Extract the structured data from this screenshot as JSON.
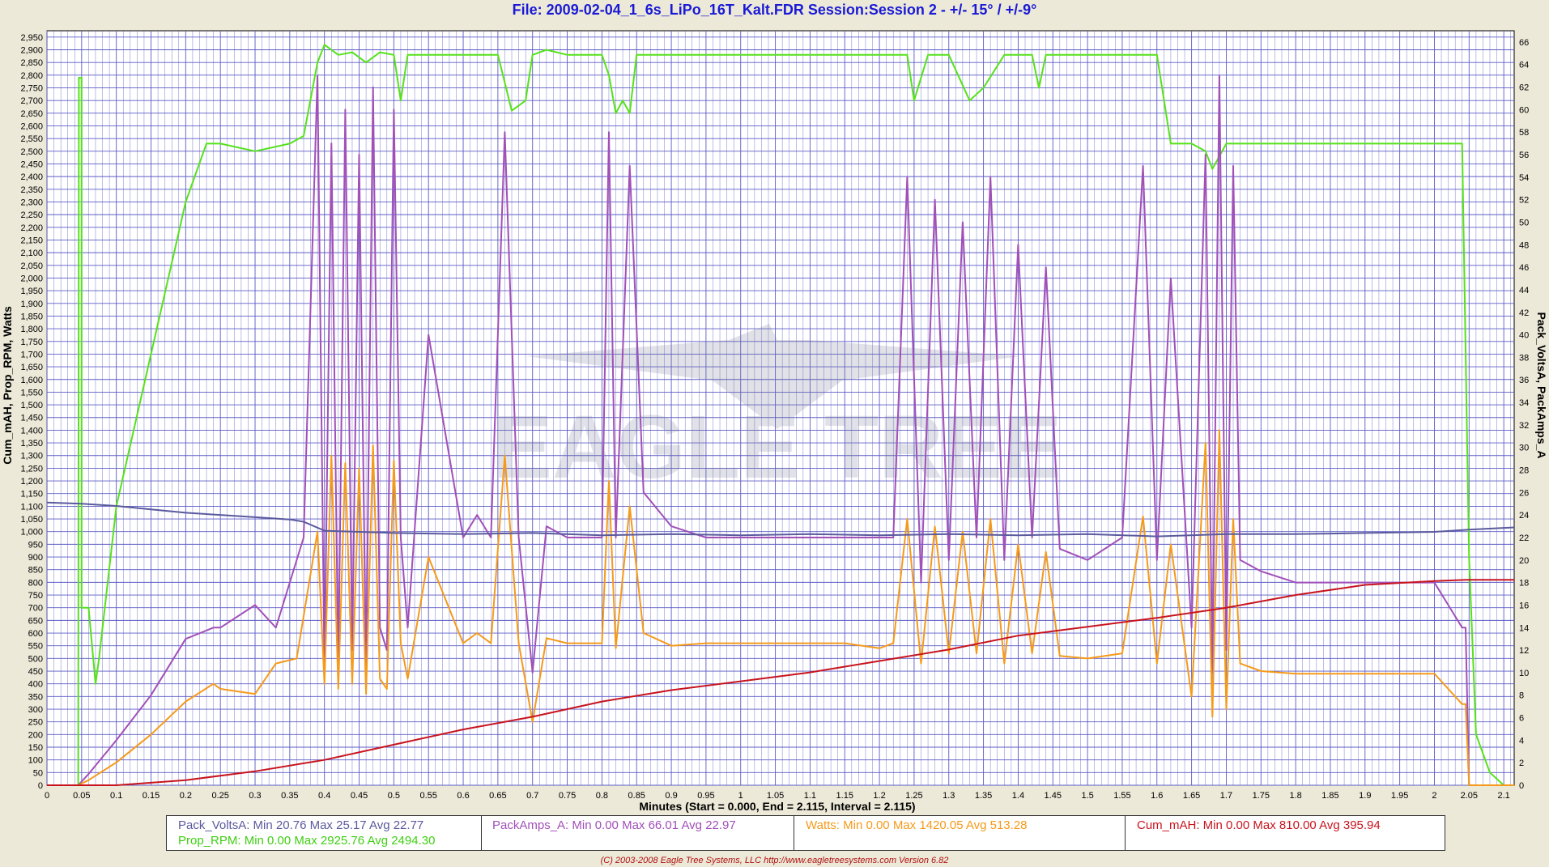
{
  "window": {
    "title": "File: 2009-02-04_1_6s_LiPo_16T_Kalt.FDR   Session:Session 2 - +/- 15° / +/-9°"
  },
  "axes": {
    "left_label": "Cum_mAH, Prop_RPM, Watts",
    "right_label": "Pack_VoltsA, PackAmps_A",
    "x_label": "Minutes (Start = 0.000,  End = 2.115,  Interval =  2.115)"
  },
  "legend": {
    "pack_volts": "Pack_VoltsA:  Min 20.76    Max 25.17    Avg 22.77",
    "prop_rpm": "Prop_RPM:  Min 0.00    Max 2925.76    Avg 2494.30",
    "pack_amps": "PackAmps_A:  Min 0.00    Max 66.01    Avg 22.97",
    "watts": "Watts:  Min 0.00    Max 1420.05    Avg 513.28",
    "cum_mah": "Cum_mAH:  Min 0.00    Max 810.00    Avg 395.94"
  },
  "footer": "(C) 2003-2008 Eagle Tree Systems, LLC      http://www.eagletreesystems.com      Version 6.82",
  "watermark": "EAGLE TREE",
  "colors": {
    "rpm": "#55e21a",
    "amps": "#a150b8",
    "watts": "#f59a1a",
    "volts": "#5a5a9e",
    "mah": "#c8141e",
    "grid": "#5b5bc6",
    "plot_bg": "#ffffff"
  },
  "chart_data": {
    "type": "line",
    "xlim": [
      0,
      2.115
    ],
    "ylim_left": [
      0,
      2975
    ],
    "ylim_right": [
      0,
      67
    ],
    "x_ticks": [
      0,
      0.05,
      0.1,
      0.15,
      0.2,
      0.25,
      0.3,
      0.35,
      0.4,
      0.45,
      0.5,
      0.55,
      0.6,
      0.65,
      0.7,
      0.75,
      0.8,
      0.85,
      0.9,
      0.95,
      1,
      1.05,
      1.1,
      1.15,
      1.2,
      1.25,
      1.3,
      1.35,
      1.4,
      1.45,
      1.5,
      1.55,
      1.6,
      1.65,
      1.7,
      1.75,
      1.8,
      1.85,
      1.9,
      1.95,
      2,
      2.05,
      2.1
    ],
    "y_left_ticks": [
      0,
      50,
      100,
      150,
      200,
      250,
      300,
      350,
      400,
      450,
      500,
      550,
      600,
      650,
      700,
      750,
      800,
      850,
      900,
      950,
      1000,
      1050,
      1100,
      1150,
      1200,
      1250,
      1300,
      1350,
      1400,
      1450,
      1500,
      1550,
      1600,
      1650,
      1700,
      1750,
      1800,
      1850,
      1900,
      1950,
      2000,
      2050,
      2100,
      2150,
      2200,
      2250,
      2300,
      2350,
      2400,
      2450,
      2500,
      2550,
      2600,
      2650,
      2700,
      2750,
      2800,
      2850,
      2900,
      2950
    ],
    "y_left_tick_labels": [
      "0",
      "50",
      "100",
      "150",
      "200",
      "250",
      "300",
      "350",
      "400",
      "450",
      "500",
      "550",
      "600",
      "650",
      "700",
      "750",
      "800",
      "850",
      "900",
      "950",
      "1,000",
      "1,050",
      "1,100",
      "1,150",
      "1,200",
      "1,250",
      "1,300",
      "1,350",
      "1,400",
      "1,450",
      "1,500",
      "1,550",
      "1,600",
      "1,650",
      "1,700",
      "1,750",
      "1,800",
      "1,850",
      "1,900",
      "1,950",
      "2,000",
      "2,050",
      "2,100",
      "2,150",
      "2,200",
      "2,250",
      "2,300",
      "2,350",
      "2,400",
      "2,450",
      "2,500",
      "2,550",
      "2,600",
      "2,650",
      "2,700",
      "2,750",
      "2,800",
      "2,850",
      "2,900",
      "2,950"
    ],
    "y_right_ticks": [
      0,
      2,
      4,
      6,
      8,
      10,
      12,
      14,
      16,
      18,
      20,
      22,
      24,
      26,
      28,
      30,
      32,
      34,
      36,
      38,
      40,
      42,
      44,
      46,
      48,
      50,
      52,
      54,
      56,
      58,
      60,
      62,
      64,
      66
    ],
    "series": [
      {
        "name": "Prop_RPM",
        "axis": "left",
        "color": "#55e21a",
        "x": [
          0.04,
          0.045,
          0.046,
          0.05,
          0.05,
          0.06,
          0.07,
          0.075,
          0.1,
          0.15,
          0.2,
          0.23,
          0.25,
          0.3,
          0.35,
          0.37,
          0.39,
          0.4,
          0.42,
          0.44,
          0.46,
          0.48,
          0.5,
          0.51,
          0.52,
          0.55,
          0.6,
          0.65,
          0.67,
          0.69,
          0.7,
          0.72,
          0.75,
          0.8,
          0.81,
          0.82,
          0.83,
          0.84,
          0.85,
          0.9,
          0.95,
          1.0,
          1.05,
          1.1,
          1.15,
          1.2,
          1.22,
          1.24,
          1.25,
          1.27,
          1.3,
          1.33,
          1.35,
          1.38,
          1.4,
          1.42,
          1.43,
          1.44,
          1.45,
          1.5,
          1.55,
          1.58,
          1.6,
          1.62,
          1.65,
          1.67,
          1.68,
          1.7,
          1.72,
          1.75,
          1.8,
          1.85,
          1.9,
          1.95,
          2.0,
          2.04,
          2.05,
          2.06,
          2.08,
          2.1,
          2.115
        ],
        "y": [
          0,
          0,
          2790,
          2790,
          700,
          700,
          400,
          500,
          1100,
          1700,
          2300,
          2530,
          2530,
          2500,
          2530,
          2560,
          2850,
          2920,
          2880,
          2890,
          2850,
          2890,
          2880,
          2700,
          2880,
          2880,
          2880,
          2880,
          2660,
          2700,
          2880,
          2900,
          2880,
          2880,
          2800,
          2650,
          2700,
          2650,
          2880,
          2880,
          2880,
          2880,
          2880,
          2880,
          2880,
          2880,
          2880,
          2880,
          2700,
          2880,
          2880,
          2700,
          2750,
          2880,
          2880,
          2880,
          2750,
          2880,
          2880,
          2880,
          2880,
          2880,
          2880,
          2530,
          2530,
          2500,
          2430,
          2530,
          2530,
          2530,
          2530,
          2530,
          2530,
          2530,
          2530,
          2530,
          900,
          200,
          50,
          0,
          0
        ]
      },
      {
        "name": "PackAmps_A",
        "axis": "right",
        "color": "#a150b8",
        "x": [
          0.045,
          0.06,
          0.1,
          0.15,
          0.2,
          0.24,
          0.25,
          0.3,
          0.33,
          0.37,
          0.39,
          0.4,
          0.41,
          0.42,
          0.43,
          0.44,
          0.45,
          0.46,
          0.47,
          0.48,
          0.49,
          0.5,
          0.51,
          0.52,
          0.55,
          0.6,
          0.62,
          0.64,
          0.66,
          0.68,
          0.7,
          0.72,
          0.75,
          0.8,
          0.81,
          0.82,
          0.84,
          0.86,
          0.9,
          0.95,
          1.0,
          1.05,
          1.1,
          1.15,
          1.2,
          1.22,
          1.24,
          1.26,
          1.28,
          1.3,
          1.32,
          1.34,
          1.36,
          1.38,
          1.4,
          1.42,
          1.44,
          1.46,
          1.5,
          1.55,
          1.58,
          1.6,
          1.62,
          1.65,
          1.67,
          1.68,
          1.69,
          1.7,
          1.71,
          1.72,
          1.75,
          1.8,
          1.85,
          1.9,
          1.95,
          1.98,
          2.0,
          2.02,
          2.04,
          2.045,
          2.05,
          2.115
        ],
        "y": [
          0,
          1,
          4,
          8,
          13,
          14,
          14,
          16,
          14,
          22,
          63,
          10,
          57,
          10,
          60,
          12,
          56,
          10,
          62,
          14,
          12,
          60,
          22,
          14,
          40,
          22,
          24,
          22,
          58,
          22,
          10,
          23,
          22,
          22,
          58,
          22,
          55,
          26,
          23,
          22,
          22,
          22,
          22,
          22,
          22,
          22,
          54,
          18,
          52,
          20,
          50,
          22,
          54,
          20,
          48,
          22,
          46,
          21,
          20,
          22,
          55,
          20,
          45,
          14,
          56,
          10,
          63,
          12,
          55,
          20,
          19,
          18,
          18,
          18,
          18,
          18,
          18,
          16,
          14,
          14,
          0,
          0
        ]
      },
      {
        "name": "Watts",
        "axis": "left",
        "color": "#f59a1a",
        "x": [
          0.045,
          0.06,
          0.1,
          0.15,
          0.2,
          0.24,
          0.25,
          0.3,
          0.33,
          0.36,
          0.39,
          0.4,
          0.41,
          0.42,
          0.43,
          0.44,
          0.45,
          0.46,
          0.47,
          0.48,
          0.49,
          0.5,
          0.51,
          0.52,
          0.55,
          0.6,
          0.62,
          0.64,
          0.66,
          0.68,
          0.7,
          0.72,
          0.75,
          0.8,
          0.81,
          0.82,
          0.84,
          0.86,
          0.9,
          0.95,
          1.0,
          1.05,
          1.1,
          1.15,
          1.2,
          1.22,
          1.24,
          1.26,
          1.28,
          1.3,
          1.32,
          1.34,
          1.36,
          1.38,
          1.4,
          1.42,
          1.44,
          1.46,
          1.5,
          1.55,
          1.58,
          1.6,
          1.62,
          1.65,
          1.67,
          1.68,
          1.69,
          1.7,
          1.71,
          1.72,
          1.75,
          1.8,
          1.85,
          1.9,
          1.95,
          1.98,
          2.0,
          2.02,
          2.04,
          2.045,
          2.05,
          2.115
        ],
        "y": [
          0,
          20,
          90,
          200,
          330,
          400,
          380,
          360,
          480,
          500,
          1000,
          400,
          1300,
          380,
          1270,
          400,
          1250,
          360,
          1340,
          420,
          380,
          1280,
          560,
          420,
          900,
          560,
          600,
          560,
          1300,
          560,
          250,
          580,
          560,
          560,
          1200,
          540,
          1100,
          600,
          550,
          560,
          560,
          560,
          560,
          560,
          540,
          560,
          1050,
          480,
          1020,
          520,
          1000,
          520,
          1050,
          480,
          950,
          520,
          920,
          510,
          500,
          520,
          1060,
          480,
          950,
          350,
          1350,
          270,
          1400,
          300,
          1050,
          480,
          450,
          440,
          440,
          440,
          440,
          440,
          440,
          380,
          320,
          320,
          0,
          0
        ]
      },
      {
        "name": "Pack_VoltsA",
        "axis": "right",
        "color": "#5a5a9e",
        "x": [
          0,
          0.05,
          0.1,
          0.15,
          0.2,
          0.25,
          0.3,
          0.35,
          0.37,
          0.4,
          0.5,
          0.6,
          0.7,
          0.8,
          0.9,
          1.0,
          1.1,
          1.2,
          1.3,
          1.4,
          1.5,
          1.6,
          1.7,
          1.75,
          1.8,
          1.9,
          2.0,
          2.05,
          2.115
        ],
        "y": [
          25.1,
          25.0,
          24.8,
          24.5,
          24.2,
          24.0,
          23.8,
          23.6,
          23.4,
          22.6,
          22.4,
          22.3,
          22.4,
          22.2,
          22.3,
          22.2,
          22.3,
          22.2,
          22.3,
          22.2,
          22.3,
          22.1,
          22.3,
          22.3,
          22.3,
          22.4,
          22.5,
          22.7,
          22.9
        ]
      },
      {
        "name": "Cum_mAH",
        "axis": "left",
        "color": "#c8141e",
        "x": [
          0,
          0.1,
          0.2,
          0.3,
          0.4,
          0.5,
          0.6,
          0.7,
          0.8,
          0.9,
          1.0,
          1.1,
          1.2,
          1.3,
          1.4,
          1.5,
          1.6,
          1.7,
          1.8,
          1.9,
          2.0,
          2.045,
          2.05,
          2.115
        ],
        "y": [
          0,
          0,
          20,
          55,
          100,
          160,
          220,
          270,
          330,
          375,
          410,
          445,
          490,
          535,
          590,
          625,
          660,
          700,
          750,
          790,
          805,
          810,
          810,
          810
        ]
      }
    ]
  }
}
